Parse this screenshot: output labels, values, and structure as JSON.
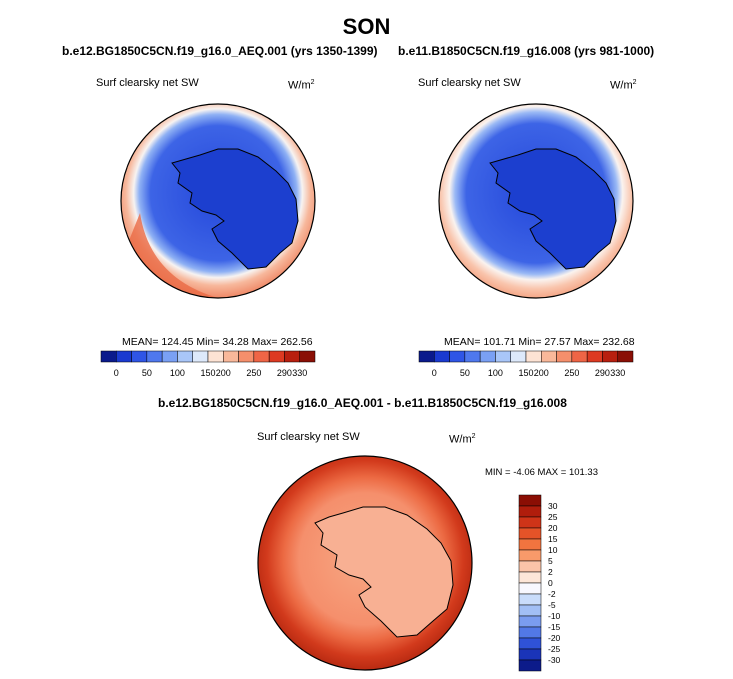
{
  "season": "SON",
  "panels": [
    {
      "title": "b.e12.BG1850C5CN.f19_g16.0_AEQ.001 (yrs 1350-1399)",
      "variable": "Surf clearsky net SW",
      "units_base": "W/m",
      "units_exp": "2",
      "stats": "MEAN= 124.45  Min= 34.28  Max= 262.56"
    },
    {
      "title": "b.e11.B1850C5CN.f19_g16.008 (yrs 981-1000)",
      "variable": "Surf clearsky net SW",
      "units_base": "W/m",
      "units_exp": "2",
      "stats": "MEAN= 101.71  Min= 27.57  Max= 232.68"
    }
  ],
  "abs_colorbar": {
    "colors": [
      "#0a1a8c",
      "#1a3ad0",
      "#2f55e6",
      "#4f78ee",
      "#7aa0f4",
      "#a9c6f8",
      "#dde9fb",
      "#fde3d4",
      "#f9b89a",
      "#f58f6c",
      "#ef6546",
      "#dd3a22",
      "#b81f0f",
      "#8a0f05"
    ],
    "labels": [
      "0",
      "50",
      "100",
      "150",
      "200",
      "250",
      "290",
      "330"
    ]
  },
  "diff_panel": {
    "title": "b.e12.BG1850C5CN.f19_g16.0_AEQ.001 - b.e11.B1850C5CN.f19_g16.008",
    "variable": "Surf clearsky net SW",
    "units_base": "W/m",
    "units_exp": "2",
    "minmax": "MIN =  -4.06 MAX = 101.33"
  },
  "diff_colorbar": {
    "labels": [
      "30",
      "25",
      "20",
      "15",
      "10",
      "5",
      "2",
      "0",
      "-2",
      "-5",
      "-10",
      "-15",
      "-20",
      "-25",
      "-30"
    ],
    "colors": [
      "#8b0e04",
      "#b01d0c",
      "#cf3418",
      "#e45328",
      "#f1743f",
      "#f89a6a",
      "#fbc4a8",
      "#fde6d8",
      "#f8f8ff",
      "#c9dcfb",
      "#a2bff5",
      "#7a9cef",
      "#5278e6",
      "#2f52d8",
      "#1a34b8",
      "#0c1b8a"
    ]
  },
  "colors": {
    "land_outline": "#000000",
    "ocean_high_sw": "#e4502c",
    "antarctica_low_sw": "#1e46d8"
  }
}
